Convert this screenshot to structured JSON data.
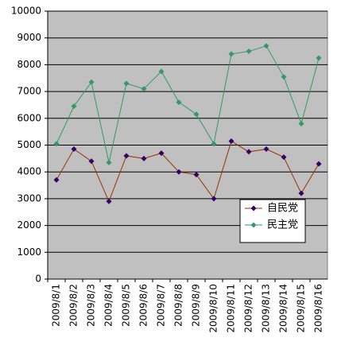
{
  "chart_data": {
    "type": "line",
    "categories": [
      "2009/8/1",
      "2009/8/2",
      "2009/8/3",
      "2009/8/4",
      "2009/8/5",
      "2009/8/6",
      "2009/8/7",
      "2009/8/8",
      "2009/8/9",
      "2009/8/10",
      "2009/8/11",
      "2009/8/12",
      "2009/8/13",
      "2009/8/14",
      "2009/8/15",
      "2009/8/16"
    ],
    "series": [
      {
        "name": "自民党",
        "color": "#993300",
        "marker_color": "#330066",
        "values": [
          3700,
          4850,
          4400,
          2900,
          4600,
          4500,
          4700,
          4000,
          3900,
          3000,
          5150,
          4750,
          4850,
          4550,
          3200,
          4300
        ]
      },
      {
        "name": "民主党",
        "color": "#339966",
        "marker_color": "#339966",
        "values": [
          5050,
          6450,
          7350,
          4350,
          7300,
          7100,
          7750,
          6600,
          6150,
          5050,
          8400,
          8500,
          8700,
          7550,
          5800,
          8250
        ]
      }
    ],
    "ylim": [
      0,
      10000
    ],
    "yticks": [
      0,
      1000,
      2000,
      3000,
      4000,
      5000,
      6000,
      7000,
      8000,
      9000,
      10000
    ],
    "grid": true,
    "plot_background": "#c0c0c0",
    "legend": "lower right"
  }
}
